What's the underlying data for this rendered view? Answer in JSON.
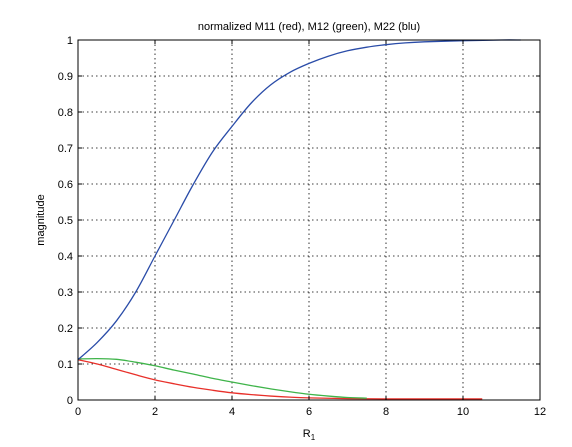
{
  "chart_data": {
    "type": "line",
    "title": "normalized M11 (red), M12 (green), M22 (blu)",
    "xlabel_main": "R",
    "xlabel_sub": "1",
    "ylabel": "magnitude",
    "xlim": [
      0,
      12
    ],
    "ylim": [
      0,
      1
    ],
    "xticks": [
      0,
      2,
      4,
      6,
      8,
      10,
      12
    ],
    "xtick_labels": [
      "0",
      "2",
      "4",
      "6",
      "8",
      "10",
      "12"
    ],
    "yticks": [
      0,
      0.1,
      0.2,
      0.3,
      0.4,
      0.5,
      0.6,
      0.7,
      0.8,
      0.9,
      1
    ],
    "ytick_labels": [
      "0",
      "0.1",
      "0.2",
      "0.3",
      "0.4",
      "0.5",
      "0.6",
      "0.7",
      "0.8",
      "0.9",
      "1"
    ],
    "grid": true,
    "series": [
      {
        "color": "#e8302a",
        "x": [
          0,
          0.5,
          1,
          1.5,
          2,
          2.5,
          3,
          3.5,
          4,
          4.5,
          5,
          5.5,
          6,
          7,
          8,
          9,
          10,
          10.5
        ],
        "y": [
          0.112,
          0.1,
          0.085,
          0.07,
          0.056,
          0.045,
          0.035,
          0.027,
          0.02,
          0.015,
          0.011,
          0.008,
          0.006,
          0.004,
          0.003,
          0.003,
          0.003,
          0.003
        ]
      },
      {
        "color": "#3fb44a",
        "x": [
          0,
          0.5,
          1,
          1.5,
          2,
          2.5,
          3,
          3.5,
          4,
          4.5,
          5,
          5.5,
          6,
          6.5,
          7,
          7.5
        ],
        "y": [
          0.114,
          0.115,
          0.113,
          0.105,
          0.095,
          0.083,
          0.072,
          0.06,
          0.05,
          0.04,
          0.031,
          0.023,
          0.016,
          0.011,
          0.007,
          0.005
        ]
      },
      {
        "color": "#2a4ca8",
        "x": [
          0,
          0.5,
          1,
          1.5,
          2,
          2.5,
          3,
          3.5,
          4,
          4.5,
          5,
          5.5,
          6,
          6.5,
          7,
          7.5,
          8,
          8.5,
          9,
          10,
          11,
          11.5
        ],
        "y": [
          0.112,
          0.16,
          0.22,
          0.3,
          0.4,
          0.5,
          0.6,
          0.69,
          0.76,
          0.825,
          0.875,
          0.91,
          0.935,
          0.955,
          0.97,
          0.98,
          0.987,
          0.992,
          0.995,
          0.998,
          1.0,
          1.0
        ]
      }
    ]
  }
}
